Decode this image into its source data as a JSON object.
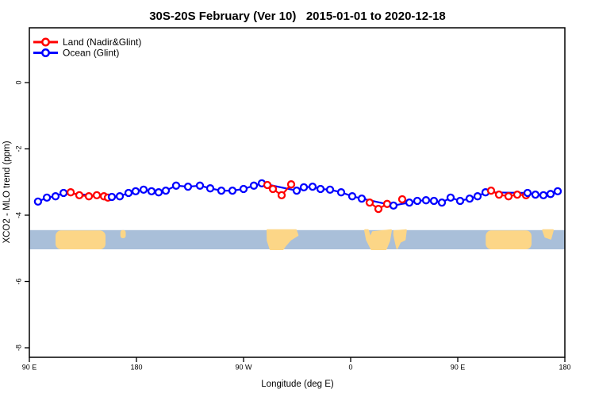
{
  "title": "30S-20S February (Ver 10)   2015-01-01 to 2020-12-18",
  "axes": {
    "x": {
      "label": "Longitude (deg E)",
      "range": [
        90,
        540
      ],
      "ticks": [
        {
          "pos": 90,
          "label": "90 E"
        },
        {
          "pos": 180,
          "label": "180"
        },
        {
          "pos": 270,
          "label": "90 W"
        },
        {
          "pos": 360,
          "label": "0"
        },
        {
          "pos": 450,
          "label": "90 E"
        },
        {
          "pos": 540,
          "label": "180"
        }
      ]
    },
    "y": {
      "label": "XCO2 - MLO trend (ppm)",
      "range": [
        -8.29,
        1.65
      ],
      "ticks": [
        {
          "pos": 0,
          "label": "0"
        },
        {
          "pos": -2,
          "label": "-2"
        },
        {
          "pos": -4,
          "label": "-4"
        },
        {
          "pos": -6,
          "label": "-6"
        },
        {
          "pos": -8,
          "label": "-8"
        }
      ]
    }
  },
  "legend": [
    {
      "label": "Land (Nadir&Glint)",
      "color": "#ff0000"
    },
    {
      "label": "Ocean (Glint)",
      "color": "#0000ff"
    }
  ],
  "colors": {
    "land_series": "#ff0000",
    "ocean_series": "#0000ff",
    "band_ocean": "#a9bfd9",
    "band_land": "#fcd687",
    "frame": "#000000"
  },
  "map_band": {
    "top_ppm": -4.45,
    "bottom_ppm": -5.03,
    "land_shapes": [
      {
        "name": "australia-west",
        "kind": "rect",
        "lon": [
          112,
          154
        ],
        "frac": [
          0.02,
          1
        ],
        "rx": 7
      },
      {
        "name": "new-caledonia-west",
        "kind": "rect",
        "lon": [
          166.5,
          171
        ],
        "frac": [
          0,
          0.42
        ],
        "rx": 3
      },
      {
        "name": "south-america",
        "kind": "poly",
        "points": [
          [
            290,
            0
          ],
          [
            314,
            0
          ],
          [
            315.5,
            0.27
          ],
          [
            309.5,
            0.5
          ],
          [
            305,
            0.82
          ],
          [
            303,
            1
          ],
          [
            292.5,
            1
          ],
          [
            290.2,
            0.55
          ]
        ]
      },
      {
        "name": "africa",
        "kind": "poly",
        "points": [
          [
            372,
            0
          ],
          [
            374.5,
            0
          ],
          [
            376.5,
            0.4
          ],
          [
            378.5,
            0.1
          ],
          [
            394,
            0
          ],
          [
            392.5,
            0.55
          ],
          [
            389.5,
            1
          ],
          [
            377.5,
            1
          ],
          [
            373.5,
            0.5
          ]
        ]
      },
      {
        "name": "madagascar",
        "kind": "poly",
        "points": [
          [
            396.5,
            0.05
          ],
          [
            406.5,
            0
          ],
          [
            405.5,
            0.5
          ],
          [
            401.5,
            0.62
          ],
          [
            399,
            0.95
          ],
          [
            397.5,
            0.55
          ],
          [
            396.5,
            0.25
          ]
        ]
      },
      {
        "name": "australia-east",
        "kind": "rect",
        "lon": [
          473.5,
          512
        ],
        "frac": [
          0.02,
          1
        ],
        "rx": 7
      },
      {
        "name": "new-caledonia-east",
        "kind": "poly",
        "points": [
          [
            521.5,
            0
          ],
          [
            530,
            0
          ],
          [
            528,
            0.45
          ],
          [
            523.5,
            0.35
          ]
        ]
      }
    ]
  },
  "chart_data": {
    "type": "line",
    "title": "30S-20S February (Ver 10)   2015-01-01 to 2020-12-18",
    "xlabel": "Longitude (deg E)",
    "ylabel": "XCO2 - MLO trend (ppm)",
    "xlim": [
      90,
      540
    ],
    "ylim": [
      -8.29,
      1.65
    ],
    "grid": false,
    "legend_position": "top-left",
    "x_note": "x is longitude in continuous deg E: 90E -> 180 -> 90W(270) -> 0(360) -> 90E(450) -> 180(540)",
    "marker": "open-circle-white-fill",
    "series": [
      {
        "name": "Ocean (Glint)",
        "color": "#0000ff",
        "runs": [
          [
            [
              97.3,
              -3.59
            ],
            [
              104.7,
              -3.47
            ],
            [
              112,
              -3.43
            ],
            [
              118.7,
              -3.33
            ],
            [
              159.3,
              -3.45
            ],
            [
              166,
              -3.43
            ],
            [
              173.3,
              -3.33
            ],
            [
              179.3,
              -3.28
            ],
            [
              186,
              -3.23
            ],
            [
              192.7,
              -3.28
            ],
            [
              198.7,
              -3.31
            ],
            [
              204.7,
              -3.26
            ],
            [
              213.3,
              -3.11
            ],
            [
              223.3,
              -3.14
            ],
            [
              233.3,
              -3.11
            ],
            [
              242,
              -3.19
            ],
            [
              251.3,
              -3.26
            ],
            [
              260.7,
              -3.26
            ],
            [
              270,
              -3.21
            ],
            [
              278.7,
              -3.11
            ],
            [
              285.3,
              -3.04
            ],
            [
              314.7,
              -3.26
            ],
            [
              320.7,
              -3.16
            ],
            [
              328,
              -3.14
            ],
            [
              334.7,
              -3.21
            ],
            [
              342.7,
              -3.23
            ],
            [
              352,
              -3.31
            ],
            [
              361.3,
              -3.43
            ],
            [
              369.3,
              -3.5
            ],
            [
              396,
              -3.71
            ],
            [
              409.3,
              -3.62
            ],
            [
              416,
              -3.57
            ],
            [
              423.3,
              -3.55
            ],
            [
              430,
              -3.57
            ],
            [
              436.7,
              -3.62
            ],
            [
              444,
              -3.47
            ],
            [
              452,
              -3.57
            ],
            [
              460,
              -3.5
            ],
            [
              466.7,
              -3.43
            ],
            [
              473.3,
              -3.31
            ],
            [
              508.7,
              -3.33
            ],
            [
              515.3,
              -3.38
            ],
            [
              522,
              -3.4
            ],
            [
              528,
              -3.36
            ],
            [
              534,
              -3.28
            ]
          ]
        ]
      },
      {
        "name": "Land (Nadir&Glint)",
        "color": "#ff0000",
        "runs": [
          [
            [
              124.7,
              -3.31
            ],
            [
              132,
              -3.4
            ],
            [
              140,
              -3.43
            ],
            [
              146.7,
              -3.4
            ],
            [
              152.7,
              -3.43
            ],
            [
              156,
              -3.47
            ]
          ],
          [
            [
              290,
              -3.09
            ],
            [
              294.7,
              -3.21
            ],
            [
              302,
              -3.4
            ],
            [
              310,
              -3.07
            ]
          ],
          [
            [
              376,
              -3.62
            ],
            [
              383.3,
              -3.81
            ],
            [
              390.7,
              -3.66
            ]
          ],
          [
            [
              403.3,
              -3.52
            ]
          ],
          [
            [
              478,
              -3.26
            ],
            [
              484.7,
              -3.38
            ],
            [
              492.7,
              -3.43
            ],
            [
              500,
              -3.38
            ],
            [
              507.3,
              -3.4
            ]
          ]
        ]
      }
    ]
  }
}
